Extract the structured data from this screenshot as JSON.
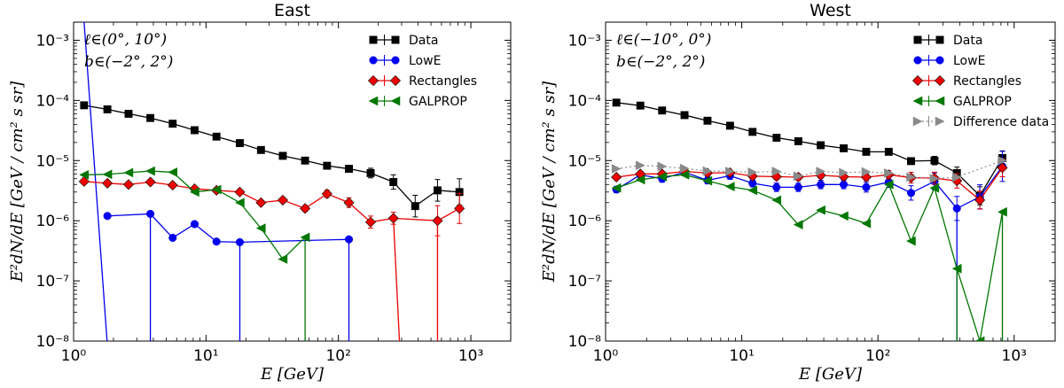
{
  "chart_data": [
    {
      "type": "scatter",
      "title": "East",
      "xlabel": "E [GeV]",
      "ylabel": "E²dN/dE [GeV / cm² s sr]",
      "xscale": "log",
      "yscale": "log",
      "xlim": [
        1,
        2000
      ],
      "ylim": [
        1e-08,
        0.002
      ],
      "x_tick_labels": [
        "10⁰",
        "10¹",
        "10²",
        "10³"
      ],
      "y_tick_labels": [
        "10⁻⁸",
        "10⁻⁷",
        "10⁻⁶",
        "10⁻⁵",
        "10⁻⁴",
        "10⁻³"
      ],
      "annotation": [
        "ℓ∈(0°, 10°)",
        "b∈(−2°, 2°)"
      ],
      "legend_position": "top-right",
      "series": [
        {
          "name": "Data",
          "color": "#000000",
          "marker": "square",
          "x": [
            1.2,
            1.8,
            2.6,
            3.8,
            5.6,
            8.2,
            12,
            18,
            26,
            38,
            56,
            82,
            120,
            175,
            260,
            380,
            560,
            820
          ],
          "y": [
            8.3e-05,
            7.1e-05,
            6e-05,
            5.1e-05,
            4.1e-05,
            3.2e-05,
            2.5e-05,
            1.95e-05,
            1.5e-05,
            1.2e-05,
            1e-05,
            8.2e-06,
            7.3e-06,
            6.2e-06,
            4.4e-06,
            1.75e-06,
            3.2e-06,
            3e-06
          ],
          "err": [
            0.03,
            0.03,
            0.03,
            0.03,
            0.03,
            0.03,
            0.03,
            0.03,
            0.03,
            0.03,
            0.03,
            0.03,
            0.05,
            0.08,
            0.12,
            0.18,
            0.18,
            0.22
          ]
        },
        {
          "name": "LowE",
          "color": "#0000ee",
          "marker": "circle",
          "x": [
            1.8,
            3.8,
            5.6,
            8.2,
            12,
            18,
            120
          ],
          "y": [
            1.2e-06,
            1.3e-06,
            5.2e-07,
            8.8e-07,
            4.5e-07,
            4.4e-07,
            4.9e-07
          ],
          "drops": [
            [
              1.2,
              1.8
            ],
            [
              3.8,
              3.8
            ],
            [
              18,
              18
            ],
            [
              120,
              120
            ]
          ]
        },
        {
          "name": "Rectangles",
          "color": "#ee0000",
          "marker": "diamond",
          "x": [
            1.2,
            1.8,
            2.6,
            3.8,
            5.6,
            8.2,
            12,
            18,
            26,
            38,
            56,
            82,
            120,
            175,
            260,
            560,
            820
          ],
          "y": [
            4.5e-06,
            4.2e-06,
            4e-06,
            4.4e-06,
            3.9e-06,
            3.4e-06,
            3.2e-06,
            3e-06,
            2e-06,
            2.2e-06,
            1.6e-06,
            2.8e-06,
            2e-06,
            9.5e-07,
            1.1e-06,
            1e-06,
            1.6e-06
          ],
          "err": [
            0.03,
            0.03,
            0.03,
            0.03,
            0.03,
            0.03,
            0.03,
            0.03,
            0.03,
            0.04,
            0.05,
            0.06,
            0.08,
            0.1,
            0.1,
            0.25,
            0.25
          ],
          "drops": [
            [
              260,
              290
            ],
            [
              560,
              560
            ]
          ]
        },
        {
          "name": "GALPROP",
          "color": "#007700",
          "marker": "triangle-left",
          "x": [
            1.2,
            1.8,
            2.6,
            3.8,
            5.6,
            8.2,
            12,
            18,
            26,
            38,
            56
          ],
          "y": [
            5.8e-06,
            5.9e-06,
            6.3e-06,
            6.7e-06,
            6.4e-06,
            3e-06,
            3.3e-06,
            2e-06,
            7.5e-07,
            2.3e-07,
            5.3e-07
          ],
          "drops": [
            [
              56,
              56
            ]
          ]
        }
      ]
    },
    {
      "type": "scatter",
      "title": "West",
      "xlabel": "E [GeV]",
      "ylabel": "E²dN/dE [GeV / cm² s sr]",
      "xscale": "log",
      "yscale": "log",
      "xlim": [
        1,
        2000
      ],
      "ylim": [
        1e-08,
        0.002
      ],
      "x_tick_labels": [
        "10⁰",
        "10¹",
        "10²",
        "10³"
      ],
      "y_tick_labels": [
        "10⁻⁸",
        "10⁻⁷",
        "10⁻⁶",
        "10⁻⁵",
        "10⁻⁴",
        "10⁻³"
      ],
      "annotation": [
        "ℓ∈(−10°, 0°)",
        "b∈(−2°, 2°)"
      ],
      "legend_position": "top-right",
      "series": [
        {
          "name": "Data",
          "color": "#000000",
          "marker": "square",
          "x": [
            1.2,
            1.8,
            2.6,
            3.8,
            5.6,
            8.2,
            12,
            18,
            26,
            38,
            56,
            82,
            120,
            175,
            260,
            380,
            560,
            820
          ],
          "y": [
            9.2e-05,
            8.2e-05,
            6.8e-05,
            5.7e-05,
            4.6e-05,
            3.8e-05,
            3e-05,
            2.4e-05,
            2.1e-05,
            1.8e-05,
            1.6e-05,
            1.4e-05,
            1.4e-05,
            9.8e-06,
            1e-05,
            6.2e-06,
            2.6e-06,
            1.1e-05
          ],
          "err": [
            0.03,
            0.03,
            0.03,
            0.03,
            0.03,
            0.03,
            0.03,
            0.03,
            0.03,
            0.03,
            0.03,
            0.03,
            0.04,
            0.05,
            0.07,
            0.1,
            0.15,
            0.12
          ]
        },
        {
          "name": "LowE",
          "color": "#0000ee",
          "marker": "circle",
          "x": [
            1.2,
            1.8,
            2.6,
            3.8,
            5.6,
            8.2,
            12,
            18,
            26,
            38,
            56,
            82,
            120,
            175,
            260,
            380,
            560,
            820
          ],
          "y": [
            3.3e-06,
            5.8e-06,
            5e-06,
            6.4e-06,
            4.7e-06,
            5.6e-06,
            4.2e-06,
            3.6e-06,
            3.6e-06,
            4e-06,
            4e-06,
            3.6e-06,
            4.4e-06,
            2.9e-06,
            4.5e-06,
            1.6e-06,
            2.5e-06,
            8e-06
          ],
          "err": [
            0.05,
            0.06,
            0.06,
            0.06,
            0.06,
            0.06,
            0.06,
            0.07,
            0.07,
            0.07,
            0.07,
            0.08,
            0.09,
            0.12,
            0.14,
            0.2,
            0.2,
            0.25
          ],
          "drops": [
            [
              380,
              380
            ]
          ]
        },
        {
          "name": "Rectangles",
          "color": "#ee0000",
          "marker": "diamond",
          "x": [
            1.2,
            1.8,
            2.6,
            3.8,
            5.6,
            8.2,
            12,
            18,
            26,
            38,
            56,
            82,
            120,
            175,
            260,
            380,
            560,
            820
          ],
          "y": [
            5.3e-06,
            6e-06,
            6e-06,
            6.6e-06,
            6.2e-06,
            6.3e-06,
            5.5e-06,
            5.4e-06,
            5.3e-06,
            5.7e-06,
            5.4e-06,
            5.3e-06,
            5.8e-06,
            5.2e-06,
            5.1e-06,
            4.6e-06,
            2.2e-06,
            7.6e-06
          ],
          "err": [
            0.04,
            0.04,
            0.04,
            0.04,
            0.04,
            0.04,
            0.04,
            0.05,
            0.05,
            0.05,
            0.05,
            0.06,
            0.07,
            0.09,
            0.1,
            0.12,
            0.15,
            0.15
          ]
        },
        {
          "name": "GALPROP",
          "color": "#007700",
          "marker": "triangle-left",
          "x": [
            1.2,
            1.8,
            2.6,
            3.8,
            5.6,
            8.2,
            12,
            18,
            26,
            38,
            56,
            82,
            120,
            175,
            260,
            380,
            560,
            820
          ],
          "y": [
            3.5e-06,
            4.8e-06,
            5.4e-06,
            5.8e-06,
            4.6e-06,
            3.7e-06,
            3.2e-06,
            2.2e-06,
            8.6e-07,
            1.5e-06,
            1.2e-06,
            9e-07,
            4e-06,
            4.6e-07,
            3.5e-06,
            1.6e-07,
            1e-08,
            1.4e-06
          ],
          "drops": [
            [
              380,
              380
            ],
            [
              820,
              820
            ]
          ]
        },
        {
          "name": "Difference data",
          "color": "#8a8a8a",
          "marker": "triangle-right",
          "dotted": true,
          "x": [
            1.2,
            1.8,
            2.6,
            3.8,
            5.6,
            8.2,
            12,
            18,
            26,
            38,
            56,
            82,
            120,
            175,
            260,
            380,
            820
          ],
          "y": [
            7.3e-06,
            8.3e-06,
            8e-06,
            7.4e-06,
            6.7e-06,
            6.6e-06,
            6.4e-06,
            6.6e-06,
            5.5e-06,
            6.6e-06,
            6.3e-06,
            6.5e-06,
            6.2e-06,
            5.3e-06,
            5e-06,
            5.3e-06,
            1e-05
          ]
        }
      ]
    }
  ]
}
